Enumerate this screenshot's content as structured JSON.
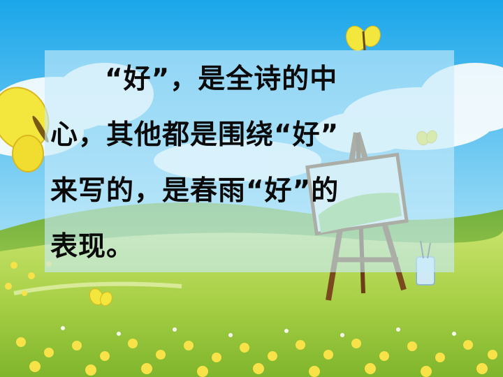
{
  "slide": {
    "lines": [
      "“好”，是全诗的中",
      "心，其他都是围绕“好”",
      "来写的，是春雨“好”的",
      "表现。"
    ]
  },
  "colors": {
    "sky_top": "#1aa6ea",
    "sky_bottom": "#bfe8f7",
    "grass": "#9fcc3a",
    "butterfly": "#f3e63c",
    "text": "#0a0a0a"
  }
}
